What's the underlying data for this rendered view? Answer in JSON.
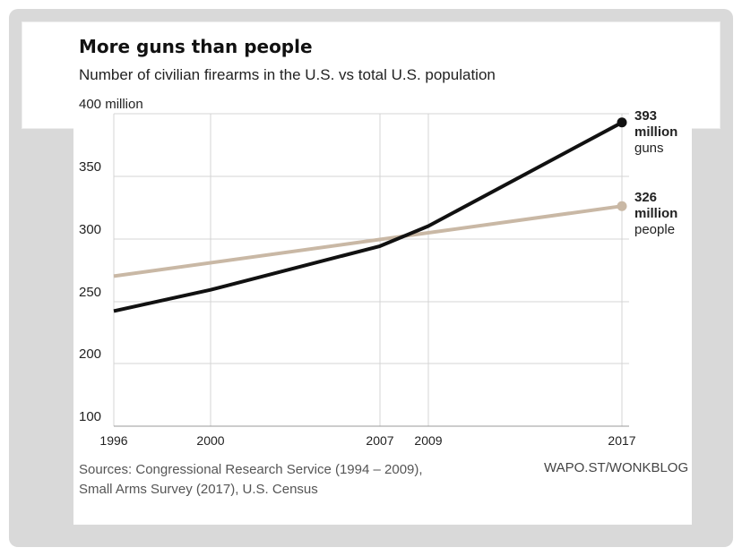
{
  "header": {
    "title": "More guns than people",
    "subtitle": "Number of civilian firearms in the U.S. vs total U.S. population"
  },
  "footer": {
    "source_line1": "Sources: Congressional Research Service (1994 – 2009),",
    "source_line2": "Small Arms Survey (2017), U.S. Census",
    "credit": "WAPO.ST/WONKBLOG"
  },
  "labels": {
    "guns_value": "393",
    "guns_unit": "million",
    "guns_name": "guns",
    "people_value": "326",
    "people_unit": "million",
    "people_name": "people"
  },
  "colors": {
    "guns": "#111111",
    "people": "#c9b8a5",
    "grid": "#d4d4d4",
    "axis_text": "#222222"
  },
  "chart_data": {
    "type": "line",
    "title": "More guns than people",
    "subtitle": "Number of civilian firearms in the U.S. vs total U.S. population",
    "xlim": [
      1996,
      2017
    ],
    "ylim": [
      100,
      400
    ],
    "x_ticks": [
      1996,
      2000,
      2007,
      2009,
      2017
    ],
    "y_ticks": [
      100,
      200,
      250,
      300,
      350,
      400
    ],
    "y_tick_labels": [
      "100",
      "200",
      "250",
      "300",
      "350",
      "400 million"
    ],
    "grid": true,
    "series": [
      {
        "name": "guns",
        "color": "#111111",
        "x": [
          1996,
          2000,
          2007,
          2009,
          2017
        ],
        "y": [
          242,
          259,
          294,
          310,
          393
        ]
      },
      {
        "name": "people",
        "color": "#c9b8a5",
        "x": [
          1996,
          2017
        ],
        "y": [
          270,
          326
        ]
      }
    ]
  }
}
